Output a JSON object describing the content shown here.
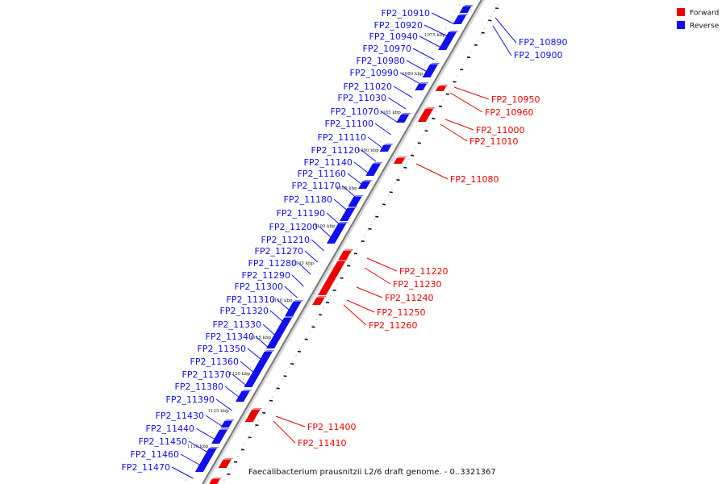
{
  "caption": "Faecalibacterium prausnitzii L2/6 draft genome. - 0..3321367",
  "legend": {
    "forward": {
      "label": "Forward",
      "color": "#ee0000"
    },
    "reverse": {
      "label": "Reverse",
      "color": "#1010ee"
    }
  },
  "ticks": [
    "1075 kbp",
    "1080 kbp",
    "1085 kbp",
    "1090 kbp",
    "1095 kbp",
    "1100 kbp",
    "1105 kbp",
    "1110 kbp",
    "1115 kbp",
    "1120 kbp",
    "1125 kbp",
    "1130 kbp"
  ],
  "reverse_genes": [
    "FP2_10910",
    "FP2_10920",
    "FP2_10940",
    "FP2_10970",
    "FP2_10980",
    "FP2_10990",
    "FP2_11020",
    "FP2_11030",
    "FP2_11070",
    "FP2_11100",
    "FP2_11110",
    "FP2_11120",
    "FP2_11140",
    "FP2_11160",
    "FP2_11170",
    "FP2_11180",
    "FP2_11190",
    "FP2_11200",
    "FP2_11210",
    "FP2_11270",
    "FP2_11280",
    "FP2_11290",
    "FP2_11300",
    "FP2_11310",
    "FP2_11320",
    "FP2_11330",
    "FP2_11340",
    "FP2_11350",
    "FP2_11360",
    "FP2_11370",
    "FP2_11380",
    "FP2_11390",
    "FP2_11430",
    "FP2_11440",
    "FP2_11450",
    "FP2_11460",
    "FP2_11470"
  ],
  "reverse_right_genes": [
    "FP2_10890",
    "FP2_10900"
  ],
  "forward_genes": [
    "FP2_10950",
    "FP2_10960",
    "FP2_11000",
    "FP2_11010",
    "FP2_11080",
    "FP2_11220",
    "FP2_11230",
    "FP2_11240",
    "FP2_11250",
    "FP2_11260",
    "FP2_11400",
    "FP2_11410"
  ]
}
